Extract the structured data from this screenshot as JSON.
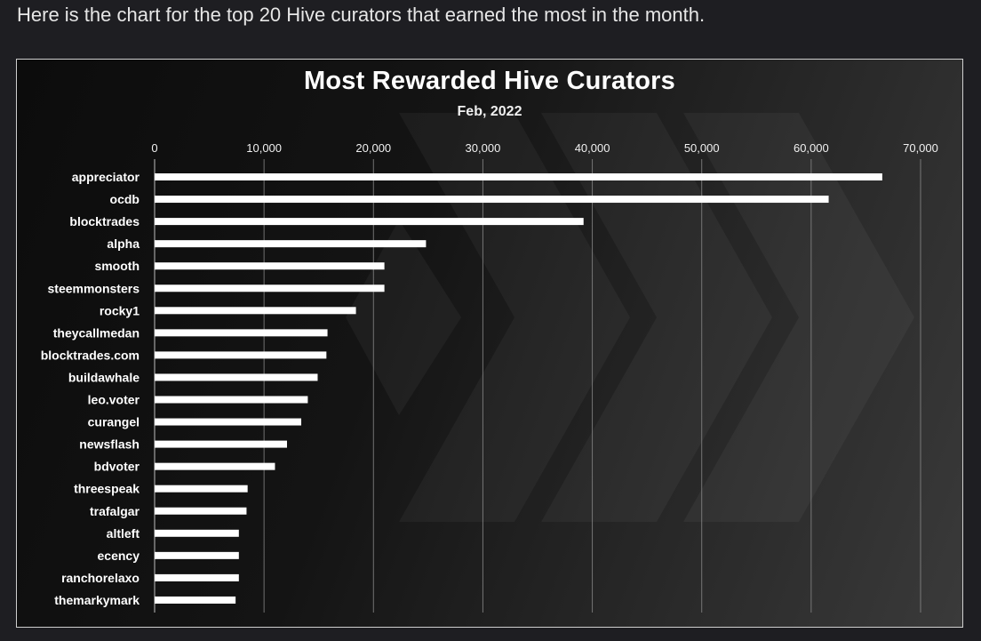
{
  "intro_text": "Here is the chart for the top 20 Hive curators that earned the most in the month.",
  "colors": {
    "bar": "#ffffff",
    "grid": "#8a8a8a",
    "text": "#ffffff",
    "background": "#0f0f0f"
  },
  "chart_data": {
    "type": "bar",
    "orientation": "horizontal",
    "title": "Most Rewarded Hive Curators",
    "subtitle": "Feb, 2022",
    "xlabel": "",
    "ylabel": "",
    "xlim": [
      0,
      70000
    ],
    "x_ticks": [
      0,
      10000,
      20000,
      30000,
      40000,
      50000,
      60000,
      70000
    ],
    "x_tick_labels": [
      "0",
      "10,000",
      "20,000",
      "30,000",
      "40,000",
      "50,000",
      "60,000",
      "70,000"
    ],
    "x_axis_position": "top",
    "grid": true,
    "legend": "none",
    "categories": [
      "appreciator",
      "ocdb",
      "blocktrades",
      "alpha",
      "smooth",
      "steemmonsters",
      "rocky1",
      "theycallmedan",
      "blocktrades.com",
      "buildawhale",
      "leo.voter",
      "curangel",
      "newsflash",
      "bdvoter",
      "threespeak",
      "trafalgar",
      "altleft",
      "ecency",
      "ranchorelaxo",
      "themarkymark"
    ],
    "values": [
      66500,
      61600,
      39200,
      24800,
      21000,
      21000,
      18400,
      15800,
      15700,
      14900,
      14000,
      13400,
      12100,
      11000,
      8500,
      8400,
      7700,
      7700,
      7700,
      7400
    ]
  }
}
